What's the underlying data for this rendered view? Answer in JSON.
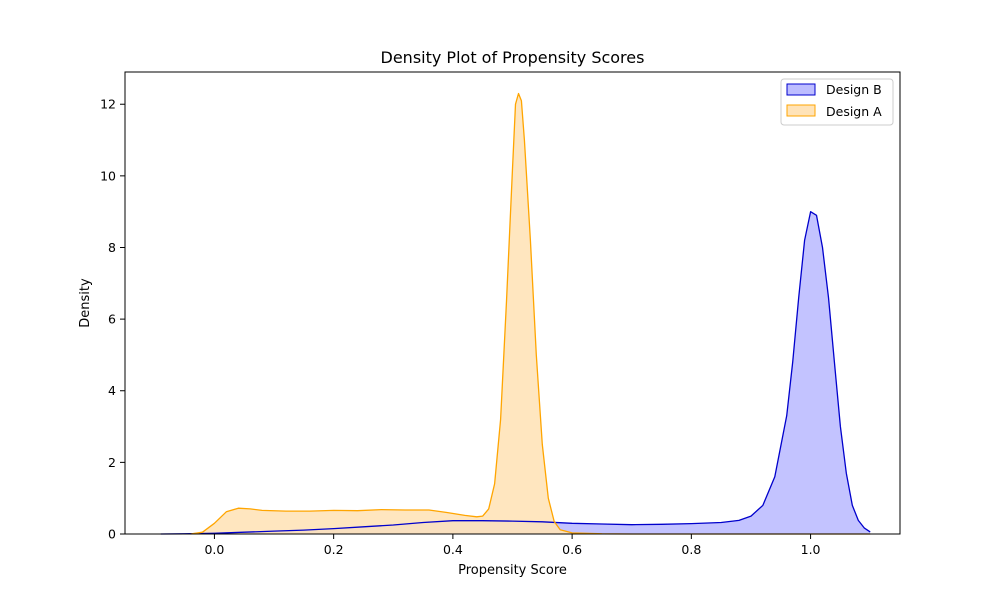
{
  "chart_data": {
    "type": "area",
    "title": "Density Plot of Propensity Scores",
    "xlabel": "Propensity Score",
    "ylabel": "Density",
    "xlim": [
      -0.15,
      1.15
    ],
    "ylim": [
      0,
      12.9
    ],
    "xticks": [
      0.0,
      0.2,
      0.4,
      0.6,
      0.8,
      1.0
    ],
    "yticks": [
      0,
      2,
      4,
      6,
      8,
      10,
      12
    ],
    "xtick_labels": [
      "0.0",
      "0.2",
      "0.4",
      "0.6",
      "0.8",
      "1.0"
    ],
    "ytick_labels": [
      "0",
      "2",
      "4",
      "6",
      "8",
      "10",
      "12"
    ],
    "grid": false,
    "legend": {
      "position": "top-right"
    },
    "series": [
      {
        "name": "Design B",
        "color": "#0000cc",
        "fill": "#bdbdff",
        "points": [
          [
            -0.09,
            0.0
          ],
          [
            -0.05,
            0.005
          ],
          [
            0.0,
            0.02
          ],
          [
            0.05,
            0.05
          ],
          [
            0.1,
            0.08
          ],
          [
            0.15,
            0.11
          ],
          [
            0.2,
            0.15
          ],
          [
            0.25,
            0.2
          ],
          [
            0.3,
            0.25
          ],
          [
            0.35,
            0.32
          ],
          [
            0.4,
            0.37
          ],
          [
            0.45,
            0.37
          ],
          [
            0.5,
            0.36
          ],
          [
            0.55,
            0.34
          ],
          [
            0.6,
            0.3
          ],
          [
            0.65,
            0.28
          ],
          [
            0.7,
            0.26
          ],
          [
            0.75,
            0.27
          ],
          [
            0.8,
            0.29
          ],
          [
            0.85,
            0.32
          ],
          [
            0.88,
            0.38
          ],
          [
            0.9,
            0.5
          ],
          [
            0.92,
            0.8
          ],
          [
            0.94,
            1.6
          ],
          [
            0.96,
            3.3
          ],
          [
            0.97,
            4.8
          ],
          [
            0.98,
            6.6
          ],
          [
            0.99,
            8.2
          ],
          [
            1.0,
            9.0
          ],
          [
            1.01,
            8.9
          ],
          [
            1.02,
            8.0
          ],
          [
            1.03,
            6.6
          ],
          [
            1.04,
            4.8
          ],
          [
            1.05,
            3.0
          ],
          [
            1.06,
            1.7
          ],
          [
            1.07,
            0.8
          ],
          [
            1.08,
            0.38
          ],
          [
            1.09,
            0.17
          ],
          [
            1.1,
            0.06
          ]
        ]
      },
      {
        "name": "Design A",
        "color": "#ffa500",
        "fill": "#ffe3b8",
        "points": [
          [
            -0.04,
            0.0
          ],
          [
            -0.02,
            0.05
          ],
          [
            0.0,
            0.3
          ],
          [
            0.02,
            0.62
          ],
          [
            0.04,
            0.72
          ],
          [
            0.06,
            0.7
          ],
          [
            0.08,
            0.66
          ],
          [
            0.12,
            0.64
          ],
          [
            0.16,
            0.64
          ],
          [
            0.2,
            0.66
          ],
          [
            0.24,
            0.65
          ],
          [
            0.28,
            0.68
          ],
          [
            0.32,
            0.67
          ],
          [
            0.36,
            0.67
          ],
          [
            0.39,
            0.6
          ],
          [
            0.42,
            0.52
          ],
          [
            0.44,
            0.48
          ],
          [
            0.45,
            0.5
          ],
          [
            0.46,
            0.7
          ],
          [
            0.47,
            1.4
          ],
          [
            0.48,
            3.2
          ],
          [
            0.49,
            6.5
          ],
          [
            0.5,
            10.2
          ],
          [
            0.505,
            12.0
          ],
          [
            0.51,
            12.3
          ],
          [
            0.515,
            12.1
          ],
          [
            0.52,
            11.0
          ],
          [
            0.53,
            8.2
          ],
          [
            0.54,
            5.0
          ],
          [
            0.55,
            2.5
          ],
          [
            0.56,
            1.0
          ],
          [
            0.57,
            0.35
          ],
          [
            0.58,
            0.12
          ],
          [
            0.6,
            0.03
          ],
          [
            0.65,
            0.005
          ],
          [
            0.7,
            0.0
          ],
          [
            0.8,
            0.0
          ],
          [
            0.9,
            0.0
          ],
          [
            1.0,
            0.0
          ],
          [
            1.1,
            0.0
          ]
        ]
      }
    ]
  }
}
